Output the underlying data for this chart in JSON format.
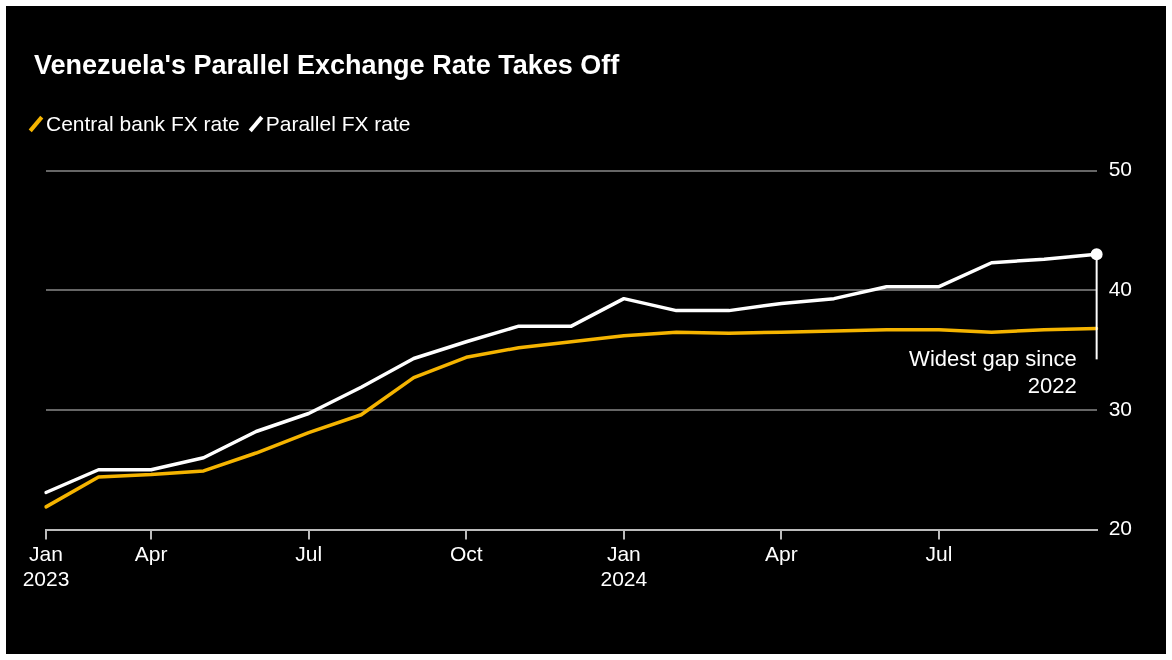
{
  "chart_data": {
    "type": "line",
    "title": "Venezuela's Parallel Exchange Rate Takes Off",
    "categories": [
      "Jan 2023",
      null,
      "Apr",
      null,
      null,
      "Jul",
      null,
      null,
      "Oct",
      null,
      null,
      "Jan 2024",
      null,
      null,
      "Apr",
      null,
      null,
      "Jul",
      null,
      null,
      null
    ],
    "series": [
      {
        "name": "Central bank FX rate",
        "color": "#f5b400",
        "values": [
          21.9,
          24.4,
          24.6,
          24.9,
          26.4,
          28.1,
          29.6,
          32.7,
          34.4,
          35.2,
          35.7,
          36.2,
          36.5,
          36.4,
          36.5,
          36.6,
          36.7,
          36.7,
          36.5,
          36.7,
          36.8
        ]
      },
      {
        "name": "Parallel FX rate",
        "color": "#ffffff",
        "values": [
          23.1,
          25.0,
          25.0,
          26.0,
          28.2,
          29.7,
          31.9,
          34.3,
          35.7,
          37.0,
          37.0,
          39.3,
          38.3,
          38.3,
          38.9,
          39.3,
          40.3,
          40.3,
          42.3,
          42.6,
          43.0
        ]
      }
    ],
    "ylim": [
      20,
      50
    ],
    "yticks": [
      20,
      30,
      40,
      50
    ],
    "grid": "y",
    "legend": "top left",
    "marker": "none",
    "line_style": "solid",
    "annotations": [
      "Widest gap since 2022"
    ]
  }
}
